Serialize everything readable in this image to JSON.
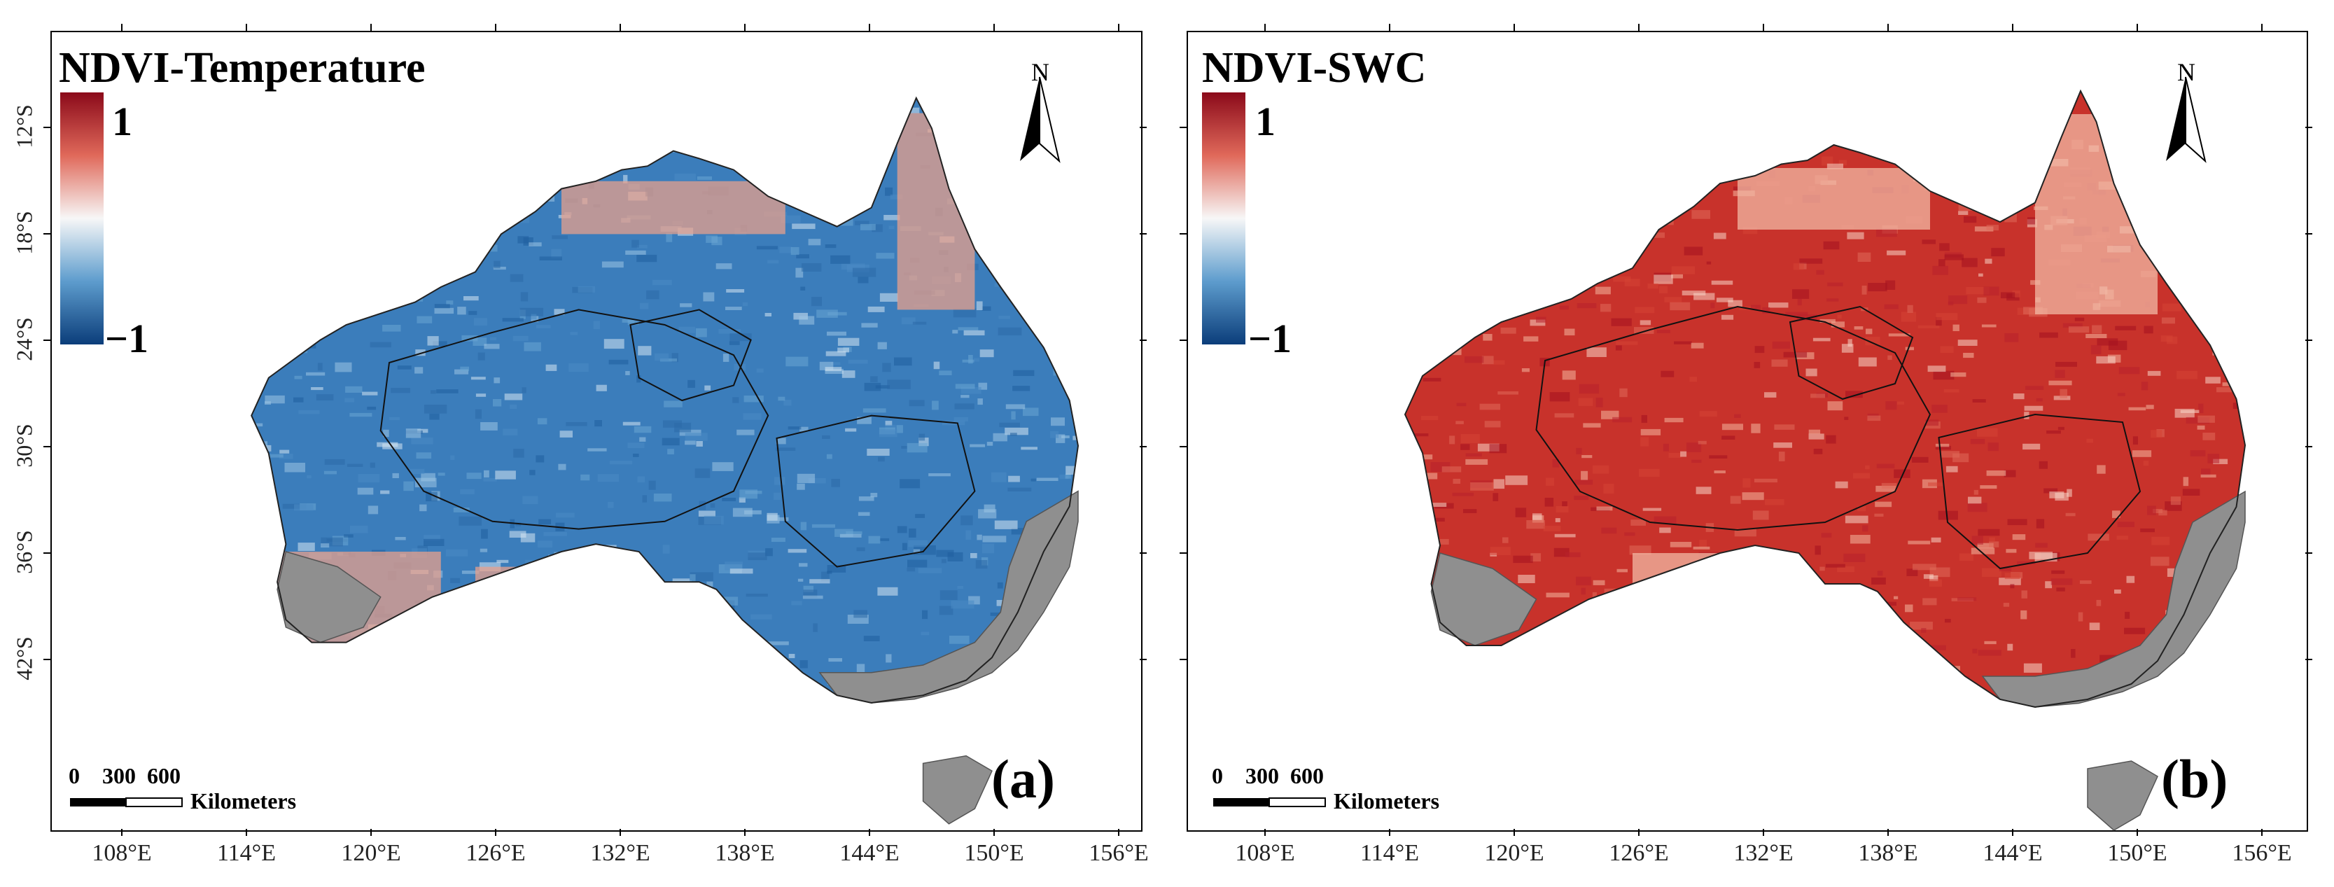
{
  "panels": [
    {
      "id": "a",
      "title": "NDVI-Temperature",
      "letter": "(a)",
      "colorbar": {
        "max_label": "1",
        "min_label": "−1",
        "max": 1,
        "min": -1,
        "top_color": "#8b0a1a",
        "mid_color": "#f7f7f7",
        "bottom_color": "#0b3d7a"
      },
      "dominant_color": "#3b7dbb",
      "secondary_color": "#e7a08c",
      "terrain_color": "#8f8f8f"
    },
    {
      "id": "b",
      "title": "NDVI-SWC",
      "letter": "(b)",
      "colorbar": {
        "max_label": "1",
        "min_label": "−1",
        "max": 1,
        "min": -1,
        "top_color": "#8b0a1a",
        "mid_color": "#f7f7f7",
        "bottom_color": "#0b3d7a"
      },
      "dominant_color": "#c8322b",
      "secondary_color": "#f1b8a4",
      "terrain_color": "#8f8f8f"
    }
  ],
  "lat_ticks": [
    "12°S",
    "18°S",
    "24°S",
    "30°S",
    "36°S",
    "42°S"
  ],
  "lon_ticks": [
    "108°E",
    "114°E",
    "120°E",
    "126°E",
    "132°E",
    "138°E",
    "144°E",
    "150°E",
    "156°E"
  ],
  "north_label": "N",
  "scale_bar": {
    "numbers": "0    300  600",
    "unit": "Kilometers"
  }
}
